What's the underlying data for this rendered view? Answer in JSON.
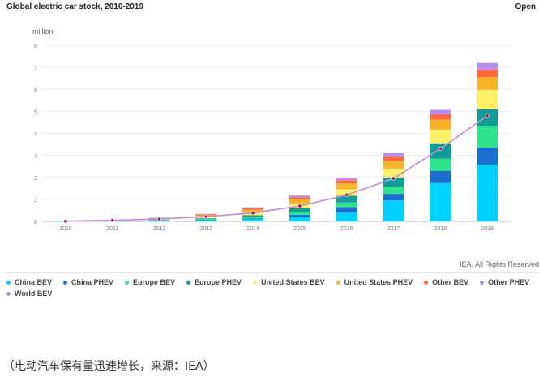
{
  "chart_data": {
    "type": "bar",
    "stacked": true,
    "title": "Global electric car stock, 2010-2019",
    "ylabel": "million",
    "ylim": [
      0,
      8
    ],
    "yticks": [
      0,
      1,
      2,
      3,
      4,
      5,
      6,
      7,
      8
    ],
    "grid": true,
    "legend_position": "bottom",
    "categories": [
      "2010",
      "2011",
      "2012",
      "2013",
      "2014",
      "2015",
      "2016",
      "2017",
      "2018",
      "2019"
    ],
    "series": [
      {
        "name": "China BEV",
        "color": "#00d1ff",
        "values": [
          0.01,
          0.02,
          0.03,
          0.06,
          0.1,
          0.2,
          0.4,
          0.95,
          1.75,
          2.58
        ]
      },
      {
        "name": "China PHEV",
        "color": "#1a6fd0",
        "values": [
          0.0,
          0.0,
          0.01,
          0.01,
          0.04,
          0.1,
          0.25,
          0.3,
          0.55,
          0.77
        ]
      },
      {
        "name": "Europe BEV",
        "color": "#2de38c",
        "values": [
          0.0,
          0.01,
          0.02,
          0.04,
          0.07,
          0.14,
          0.21,
          0.32,
          0.55,
          1.0
        ]
      },
      {
        "name": "Europe PHEV",
        "color": "#119c9a",
        "values": [
          0.0,
          0.0,
          0.01,
          0.03,
          0.07,
          0.16,
          0.3,
          0.43,
          0.7,
          0.75
        ]
      },
      {
        "name": "United States BEV",
        "color": "#ffef6a",
        "values": [
          0.0,
          0.01,
          0.03,
          0.07,
          0.12,
          0.2,
          0.3,
          0.4,
          0.62,
          0.88
        ]
      },
      {
        "name": "United States PHEV",
        "color": "#f7b32b",
        "values": [
          0.0,
          0.01,
          0.04,
          0.07,
          0.13,
          0.2,
          0.27,
          0.35,
          0.45,
          0.57
        ]
      },
      {
        "name": "Other BEV",
        "color": "#ff6a3d",
        "values": [
          0.0,
          0.01,
          0.02,
          0.04,
          0.07,
          0.1,
          0.14,
          0.2,
          0.25,
          0.35
        ]
      },
      {
        "name": "Other PHEV",
        "color": "#b98cf0",
        "values": [
          0.0,
          0.0,
          0.01,
          0.02,
          0.04,
          0.07,
          0.1,
          0.15,
          0.2,
          0.3
        ]
      }
    ],
    "line_series": {
      "name": "World BEV",
      "color": "#c58ad8",
      "marker_color": "#b2204a",
      "values": [
        0.01,
        0.05,
        0.11,
        0.22,
        0.38,
        0.7,
        1.2,
        1.95,
        3.3,
        4.8
      ]
    }
  },
  "header": {
    "open_label": "Open"
  },
  "footer": {
    "credit": "IEA. All Rights Reserved",
    "caption": "（电动汽车保有量迅速增长，来源：IEA）"
  }
}
